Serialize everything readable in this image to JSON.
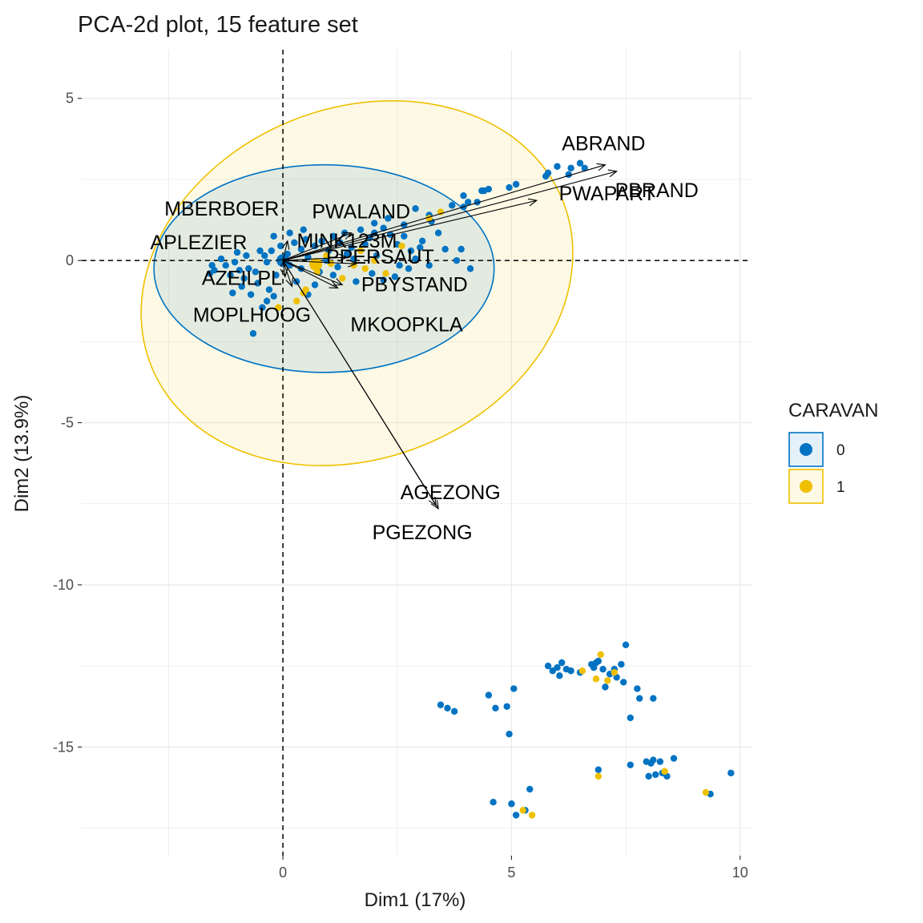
{
  "chart_data": {
    "type": "scatter",
    "title": "PCA-2d plot, 15 feature set",
    "xlabel": "Dim1 (17%)",
    "ylabel": "Dim2 (13.9%)",
    "xlim": [
      -4.4,
      10.25
    ],
    "ylim": [
      -18.35,
      6.5
    ],
    "x_ticks": [
      0,
      5,
      10
    ],
    "y_ticks": [
      5,
      0,
      -5,
      -10,
      -15
    ],
    "grid": true,
    "reference_lines": {
      "x": 0,
      "y": 0,
      "style": "dashed"
    },
    "legend": {
      "title": "CARAVAN",
      "position": "right",
      "entries": [
        {
          "label": "0",
          "color": "#0073C2"
        },
        {
          "label": "1",
          "color": "#EFC000"
        }
      ]
    },
    "ellipses": [
      {
        "group": "0",
        "center": [
          0.9,
          -0.25
        ],
        "rx": 3.72,
        "ry": 3.2,
        "angle_deg": 0,
        "color": "#0073C2"
      },
      {
        "group": "1",
        "center": [
          1.62,
          -0.7
        ],
        "rx": 4.85,
        "ry": 5.4,
        "angle_deg": -22,
        "color": "#EFC000"
      }
    ],
    "group_means": [
      {
        "group": "0",
        "x": 0.0,
        "y": 0.0
      },
      {
        "group": "1",
        "x": 0.72,
        "y": -0.12
      }
    ],
    "variables": [
      {
        "name": "ABRAND",
        "x": 7.05,
        "y": 2.95
      },
      {
        "name": "PBRAND",
        "x": 7.3,
        "y": 2.75
      },
      {
        "name": "PWAPART",
        "x": 5.55,
        "y": 1.85
      },
      {
        "name": "PWALAND",
        "x": 1.5,
        "y": 0.85
      },
      {
        "name": "MBERBOER",
        "x": 0.1,
        "y": 0.6
      },
      {
        "name": "APLEZIER",
        "x": 0.05,
        "y": 0.05
      },
      {
        "name": "MINK123M",
        "x": 1.4,
        "y": 0.1
      },
      {
        "name": "PPERSAUT",
        "x": 1.6,
        "y": -0.1
      },
      {
        "name": "AZEILPL",
        "x": 0.05,
        "y": -0.5
      },
      {
        "name": "MOPLHOOG",
        "x": 0.2,
        "y": -0.8
      },
      {
        "name": "PBYSTAND",
        "x": 1.3,
        "y": -0.75
      },
      {
        "name": "MKOOPKLA",
        "x": 1.2,
        "y": -0.85
      },
      {
        "name": "AGEZONG",
        "x": 3.35,
        "y": -7.55
      },
      {
        "name": "PGEZONG",
        "x": 3.4,
        "y": -7.65
      }
    ],
    "series": [
      {
        "name": "0",
        "color": "#0073C2",
        "points": [
          [
            5.4,
            -16.3
          ],
          [
            5.8,
            -12.5
          ],
          [
            5.9,
            -12.65
          ],
          [
            6.0,
            -12.55
          ],
          [
            6.05,
            -12.8
          ],
          [
            6.1,
            -12.4
          ],
          [
            6.2,
            -12.6
          ],
          [
            6.3,
            -12.65
          ],
          [
            6.5,
            -12.7
          ],
          [
            6.75,
            -12.45
          ],
          [
            6.8,
            -12.55
          ],
          [
            6.85,
            -12.4
          ],
          [
            6.9,
            -12.35
          ],
          [
            7.0,
            -12.6
          ],
          [
            7.25,
            -12.6
          ],
          [
            7.4,
            -12.45
          ],
          [
            7.15,
            -12.75
          ],
          [
            7.3,
            -12.85
          ],
          [
            7.45,
            -13.0
          ],
          [
            7.05,
            -13.15
          ],
          [
            7.5,
            -11.85
          ],
          [
            7.75,
            -13.2
          ],
          [
            7.8,
            -13.5
          ],
          [
            8.1,
            -13.5
          ],
          [
            7.6,
            -14.1
          ],
          [
            4.5,
            -13.4
          ],
          [
            4.65,
            -13.8
          ],
          [
            4.9,
            -13.75
          ],
          [
            5.05,
            -13.2
          ],
          [
            3.45,
            -13.7
          ],
          [
            3.6,
            -13.8
          ],
          [
            3.75,
            -13.9
          ],
          [
            4.95,
            -14.6
          ],
          [
            6.9,
            -15.7
          ],
          [
            7.6,
            -15.55
          ],
          [
            7.95,
            -15.45
          ],
          [
            8.05,
            -15.5
          ],
          [
            8.1,
            -15.4
          ],
          [
            8.25,
            -15.45
          ],
          [
            8.55,
            -15.35
          ],
          [
            8.0,
            -15.9
          ],
          [
            8.15,
            -15.85
          ],
          [
            8.3,
            -15.8
          ],
          [
            8.4,
            -15.9
          ],
          [
            9.35,
            -16.45
          ],
          [
            9.8,
            -15.8
          ],
          [
            4.6,
            -16.7
          ],
          [
            5.0,
            -16.75
          ],
          [
            5.1,
            -17.1
          ],
          [
            5.3,
            -16.95
          ],
          [
            5.8,
            2.7
          ],
          [
            5.75,
            2.6
          ],
          [
            6.0,
            2.9
          ],
          [
            6.5,
            3.0
          ],
          [
            6.6,
            2.85
          ],
          [
            6.3,
            2.85
          ],
          [
            6.25,
            2.65
          ],
          [
            5.1,
            2.35
          ],
          [
            4.95,
            2.25
          ],
          [
            4.5,
            2.2
          ],
          [
            4.35,
            2.15
          ],
          [
            4.25,
            1.8
          ],
          [
            4.05,
            1.8
          ],
          [
            3.95,
            2.0
          ],
          [
            3.95,
            1.65
          ],
          [
            4.4,
            2.15
          ],
          [
            3.7,
            1.7
          ],
          [
            3.2,
            1.4
          ],
          [
            2.9,
            1.6
          ],
          [
            3.25,
            1.2
          ],
          [
            3.4,
            0.85
          ],
          [
            3.05,
            0.6
          ],
          [
            2.8,
            0.3
          ],
          [
            2.5,
            0.5
          ],
          [
            2.05,
            0.15
          ],
          [
            3.8,
            0.0
          ],
          [
            4.1,
            -0.25
          ],
          [
            3.9,
            0.35
          ],
          [
            3.2,
            -0.15
          ],
          [
            2.75,
            -0.25
          ],
          [
            2.45,
            -0.5
          ],
          [
            2.2,
            -0.6
          ],
          [
            1.95,
            -0.4
          ],
          [
            1.6,
            -0.65
          ],
          [
            1.1,
            -0.45
          ],
          [
            0.7,
            -0.75
          ],
          [
            0.3,
            -0.65
          ],
          [
            0.55,
            -1.05
          ],
          [
            -0.2,
            -1.1
          ],
          [
            -0.35,
            -1.25
          ],
          [
            -0.45,
            -1.45
          ],
          [
            -0.65,
            -2.25
          ],
          [
            -1.1,
            -1.0
          ],
          [
            -1.5,
            -0.3
          ],
          [
            -1.6,
            -0.4
          ],
          [
            -1.55,
            -0.15
          ],
          [
            -1.35,
            0.05
          ],
          [
            -1.25,
            -0.15
          ],
          [
            -1.05,
            -0.05
          ],
          [
            -0.95,
            -0.3
          ],
          [
            -1.15,
            -0.45
          ],
          [
            -0.85,
            -0.55
          ],
          [
            -0.75,
            -0.25
          ],
          [
            -0.9,
            -0.8
          ],
          [
            -0.6,
            -0.35
          ],
          [
            -0.55,
            -0.7
          ],
          [
            -0.7,
            -1.05
          ],
          [
            -0.3,
            -0.9
          ],
          [
            -0.15,
            -0.45
          ],
          [
            -0.4,
            0.15
          ],
          [
            -0.25,
            0.3
          ],
          [
            0.1,
            0.2
          ],
          [
            0.15,
            -0.15
          ],
          [
            0.4,
            0.35
          ],
          [
            0.55,
            0.1
          ],
          [
            0.7,
            0.45
          ],
          [
            0.85,
            0.6
          ],
          [
            0.5,
            0.65
          ],
          [
            1.0,
            0.3
          ],
          [
            1.1,
            0.75
          ],
          [
            1.25,
            0.55
          ],
          [
            1.35,
            0.85
          ],
          [
            1.5,
            0.4
          ],
          [
            1.55,
            0.05
          ],
          [
            1.7,
            0.95
          ],
          [
            1.9,
            0.7
          ],
          [
            2.0,
            0.85
          ],
          [
            2.2,
            1.0
          ],
          [
            2.35,
            0.8
          ],
          [
            2.65,
            1.1
          ],
          [
            2.3,
            1.3
          ],
          [
            2.0,
            1.15
          ],
          [
            1.8,
            0.5
          ],
          [
            1.4,
            0.2
          ],
          [
            1.2,
            -0.2
          ],
          [
            0.95,
            0.0
          ],
          [
            0.8,
            -0.35
          ],
          [
            0.4,
            -0.25
          ],
          [
            0.25,
            0.55
          ],
          [
            -0.05,
            0.45
          ],
          [
            -0.2,
            0.75
          ],
          [
            0.15,
            0.85
          ],
          [
            0.45,
            0.95
          ],
          [
            -0.35,
            -0.05
          ],
          [
            -0.5,
            0.3
          ],
          [
            -0.8,
            0.15
          ],
          [
            -1.0,
            0.25
          ],
          [
            2.55,
            -0.15
          ],
          [
            2.9,
            0.05
          ],
          [
            3.0,
            0.4
          ],
          [
            2.65,
            0.75
          ],
          [
            3.55,
            0.35
          ]
        ]
      },
      {
        "name": "1",
        "color": "#EFC000",
        "points": [
          [
            6.95,
            -12.15
          ],
          [
            7.1,
            -12.95
          ],
          [
            7.25,
            -12.7
          ],
          [
            6.85,
            -12.9
          ],
          [
            6.55,
            -12.65
          ],
          [
            6.9,
            -15.9
          ],
          [
            8.35,
            -15.75
          ],
          [
            9.25,
            -16.4
          ],
          [
            5.25,
            -16.95
          ],
          [
            5.45,
            -17.1
          ],
          [
            3.45,
            1.5
          ],
          [
            3.2,
            1.3
          ],
          [
            2.6,
            0.45
          ],
          [
            2.25,
            -0.4
          ],
          [
            2.0,
            0.0
          ],
          [
            1.8,
            -0.25
          ],
          [
            1.05,
            -0.1
          ],
          [
            0.75,
            -0.35
          ],
          [
            0.5,
            -0.9
          ],
          [
            0.45,
            -1.0
          ],
          [
            0.3,
            -1.25
          ],
          [
            -0.1,
            -1.45
          ],
          [
            1.55,
            -0.15
          ],
          [
            1.7,
            0.3
          ],
          [
            0.95,
            0.15
          ],
          [
            1.3,
            -0.55
          ]
        ]
      }
    ]
  }
}
